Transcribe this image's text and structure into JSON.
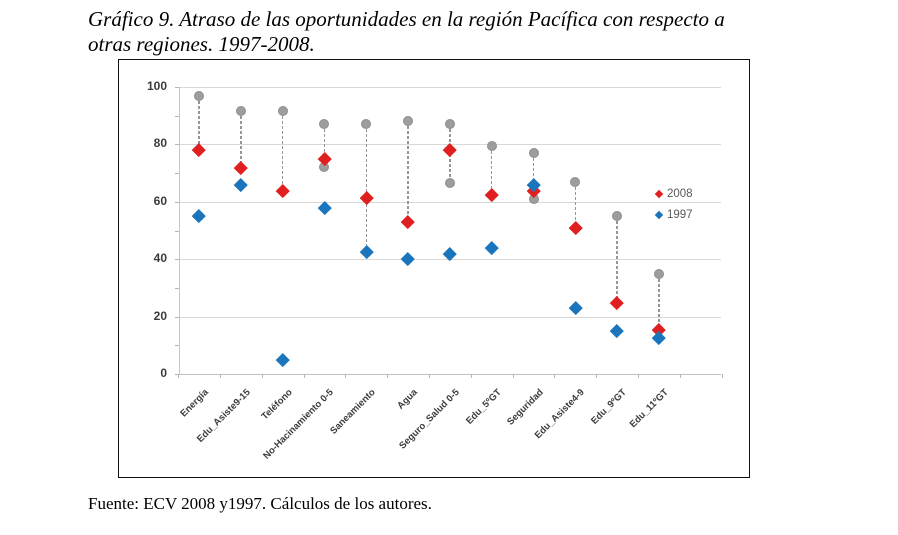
{
  "title": {
    "line1": "Gráfico 9. Atraso de las oportunidades en la región Pacífica con respecto a",
    "line2": "otras regiones. 1997-2008."
  },
  "source": "Fuente: ECV 2008 y1997. Cálculos de los autores.",
  "chart_data": {
    "type": "scatter",
    "title": "Gráfico 9. Atraso de las oportunidades en la región Pacífica con respecto a otras regiones. 1997-2008.",
    "categories": [
      "Energía",
      "Edu_Asiste9-15",
      "Teléfono",
      "No-Hacinamiento 0-5",
      "Saneamiento",
      "Agua",
      "Seguro_Salud 0-5",
      "Edu_5ºGT",
      "Seguridad",
      "Edu_Asiste4-9",
      "Edu_9ºGT",
      "Edu_11ºGT"
    ],
    "series": [
      {
        "label": "2008",
        "shape": "diamond",
        "color": "#e02020",
        "values": [
          78,
          72,
          64,
          75,
          61.5,
          53,
          78,
          62.5,
          64,
          51,
          25,
          15.5
        ]
      },
      {
        "label": "1997",
        "shape": "diamond",
        "color": "#1b75bc",
        "values": [
          55,
          66,
          5,
          58,
          42.5,
          40,
          42,
          44,
          66,
          23,
          15,
          12.5
        ]
      }
    ],
    "reference_points": {
      "shape": "circle",
      "color": "#9d9d9d",
      "values": [
        [
          97
        ],
        [
          91.5
        ],
        [
          91.5
        ],
        [
          87,
          72
        ],
        [
          87
        ],
        [
          88
        ],
        [
          87,
          66.5
        ],
        [
          79.5
        ],
        [
          77,
          61
        ],
        [
          67
        ],
        [
          55
        ],
        [
          35
        ]
      ]
    },
    "dashed_ranges": [
      [
        97,
        78
      ],
      [
        91.5,
        72
      ],
      [
        91.5,
        64
      ],
      [
        87,
        72
      ],
      [
        87,
        42.5
      ],
      [
        88,
        53
      ],
      [
        87,
        66.5
      ],
      [
        79.5,
        62.5
      ],
      [
        77,
        61
      ],
      [
        67,
        51
      ],
      [
        55,
        25
      ],
      [
        35,
        15.5
      ]
    ],
    "ylim": [
      0,
      100
    ],
    "yticks": [
      0,
      20,
      40,
      60,
      80,
      100
    ],
    "grid": "horizontal",
    "legend_position": "inside-right"
  }
}
